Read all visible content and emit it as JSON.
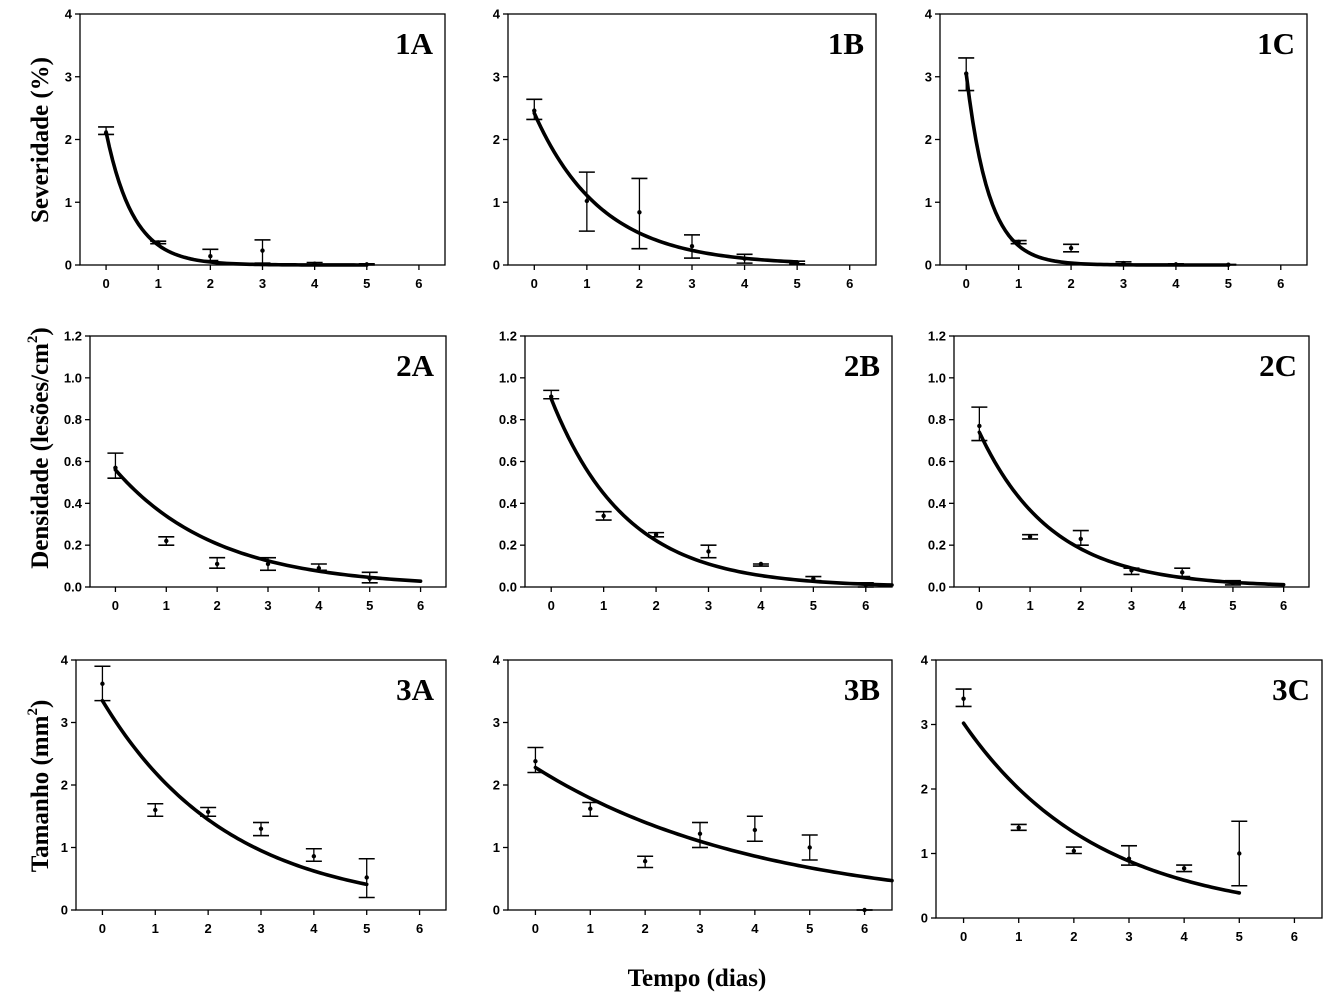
{
  "figure": {
    "x_label": "Tempo (dias)",
    "y_labels": [
      {
        "pre": "Severidade (%)",
        "sup": "",
        "post": ""
      },
      {
        "pre": "Densidade (lesões/cm",
        "sup": "2",
        "post": ")"
      },
      {
        "pre": "Tamanho (mm",
        "sup": "2",
        "post": ")"
      }
    ]
  },
  "chart_data": [
    {
      "id": "1A",
      "type": "line",
      "xlim": [
        -0.5,
        6.5
      ],
      "ylim": [
        0,
        4
      ],
      "xticks": [
        0,
        1,
        2,
        3,
        4,
        5,
        6
      ],
      "yticks": [
        0,
        1,
        2,
        3,
        4
      ],
      "points": [
        {
          "x": 0,
          "y": 2.1,
          "lo": 2.08,
          "hi": 2.2
        },
        {
          "x": 1,
          "y": 0.36,
          "lo": 0.34,
          "hi": 0.38
        },
        {
          "x": 2,
          "y": 0.14,
          "lo": 0.07,
          "hi": 0.25
        },
        {
          "x": 3,
          "y": 0.23,
          "lo": 0.03,
          "hi": 0.4
        },
        {
          "x": 4,
          "y": 0.02,
          "lo": 0.0,
          "hi": 0.04
        },
        {
          "x": 5,
          "y": 0.01,
          "lo": 0.0,
          "hi": 0.02
        }
      ],
      "curve": {
        "a": 2.12,
        "b": 1.9,
        "x0": 0,
        "x1": 5
      }
    },
    {
      "id": "1B",
      "type": "line",
      "xlim": [
        -0.5,
        6.5
      ],
      "ylim": [
        0,
        4
      ],
      "xticks": [
        0,
        1,
        2,
        3,
        4,
        5,
        6
      ],
      "yticks": [
        0,
        1,
        2,
        3,
        4
      ],
      "points": [
        {
          "x": 0,
          "y": 2.46,
          "lo": 2.32,
          "hi": 2.64
        },
        {
          "x": 1,
          "y": 1.02,
          "lo": 0.54,
          "hi": 1.48
        },
        {
          "x": 2,
          "y": 0.84,
          "lo": 0.26,
          "hi": 1.38
        },
        {
          "x": 3,
          "y": 0.3,
          "lo": 0.11,
          "hi": 0.48
        },
        {
          "x": 4,
          "y": 0.1,
          "lo": 0.03,
          "hi": 0.17
        },
        {
          "x": 5,
          "y": 0.04,
          "lo": 0.02,
          "hi": 0.06
        }
      ],
      "curve": {
        "a": 2.42,
        "b": 0.78,
        "x0": 0,
        "x1": 5
      }
    },
    {
      "id": "1C",
      "type": "line",
      "xlim": [
        -0.5,
        6.5
      ],
      "ylim": [
        0,
        4
      ],
      "xticks": [
        0,
        1,
        2,
        3,
        4,
        5,
        6
      ],
      "yticks": [
        0,
        1,
        2,
        3,
        4
      ],
      "points": [
        {
          "x": 0,
          "y": 3.05,
          "lo": 2.78,
          "hi": 3.3
        },
        {
          "x": 1,
          "y": 0.37,
          "lo": 0.34,
          "hi": 0.39
        },
        {
          "x": 2,
          "y": 0.27,
          "lo": 0.21,
          "hi": 0.33
        },
        {
          "x": 3,
          "y": 0.03,
          "lo": 0.01,
          "hi": 0.05
        },
        {
          "x": 4,
          "y": 0.01,
          "lo": 0.0,
          "hi": 0.02
        },
        {
          "x": 5,
          "y": 0.005,
          "lo": 0.0,
          "hi": 0.01
        }
      ],
      "curve": {
        "a": 3.05,
        "b": 2.3,
        "x0": 0,
        "x1": 5
      }
    },
    {
      "id": "2A",
      "type": "line",
      "xlim": [
        -0.5,
        6.5
      ],
      "ylim": [
        0,
        1.2
      ],
      "xticks": [
        0,
        1,
        2,
        3,
        4,
        5,
        6
      ],
      "yticks": [
        0.0,
        0.2,
        0.4,
        0.6,
        0.8,
        1.0,
        1.2
      ],
      "points": [
        {
          "x": 0,
          "y": 0.57,
          "lo": 0.52,
          "hi": 0.64
        },
        {
          "x": 1,
          "y": 0.22,
          "lo": 0.2,
          "hi": 0.24
        },
        {
          "x": 2,
          "y": 0.11,
          "lo": 0.09,
          "hi": 0.14
        },
        {
          "x": 3,
          "y": 0.11,
          "lo": 0.08,
          "hi": 0.14
        },
        {
          "x": 4,
          "y": 0.09,
          "lo": 0.08,
          "hi": 0.11
        },
        {
          "x": 5,
          "y": 0.04,
          "lo": 0.02,
          "hi": 0.07
        }
      ],
      "curve": {
        "a": 0.56,
        "b": 0.5,
        "x0": 0,
        "x1": 6
      }
    },
    {
      "id": "2B",
      "type": "line",
      "xlim": [
        -0.5,
        6.5
      ],
      "ylim": [
        0,
        1.2
      ],
      "xticks": [
        0,
        1,
        2,
        3,
        4,
        5,
        6
      ],
      "yticks": [
        0.0,
        0.2,
        0.4,
        0.6,
        0.8,
        1.0,
        1.2
      ],
      "points": [
        {
          "x": 0,
          "y": 0.91,
          "lo": 0.9,
          "hi": 0.94
        },
        {
          "x": 1,
          "y": 0.34,
          "lo": 0.32,
          "hi": 0.36
        },
        {
          "x": 2,
          "y": 0.25,
          "lo": 0.24,
          "hi": 0.26
        },
        {
          "x": 3,
          "y": 0.17,
          "lo": 0.14,
          "hi": 0.2
        },
        {
          "x": 4,
          "y": 0.11,
          "lo": 0.1,
          "hi": 0.11
        },
        {
          "x": 5,
          "y": 0.04,
          "lo": 0.03,
          "hi": 0.05
        },
        {
          "x": 6,
          "y": 0.01,
          "lo": 0.0,
          "hi": 0.02
        }
      ],
      "curve": {
        "a": 0.9,
        "b": 0.7,
        "x0": 0,
        "x1": 6.5
      }
    },
    {
      "id": "2C",
      "type": "line",
      "xlim": [
        -0.5,
        6.5
      ],
      "ylim": [
        0,
        1.2
      ],
      "xticks": [
        0,
        1,
        2,
        3,
        4,
        5,
        6
      ],
      "yticks": [
        0.0,
        0.2,
        0.4,
        0.6,
        0.8,
        1.0,
        1.2
      ],
      "points": [
        {
          "x": 0,
          "y": 0.77,
          "lo": 0.7,
          "hi": 0.86
        },
        {
          "x": 1,
          "y": 0.24,
          "lo": 0.23,
          "hi": 0.25
        },
        {
          "x": 2,
          "y": 0.23,
          "lo": 0.2,
          "hi": 0.27
        },
        {
          "x": 3,
          "y": 0.08,
          "lo": 0.06,
          "hi": 0.09
        },
        {
          "x": 4,
          "y": 0.07,
          "lo": 0.05,
          "hi": 0.09
        },
        {
          "x": 5,
          "y": 0.02,
          "lo": 0.01,
          "hi": 0.03
        }
      ],
      "curve": {
        "a": 0.74,
        "b": 0.7,
        "x0": 0,
        "x1": 6
      }
    },
    {
      "id": "3A",
      "type": "line",
      "xlim": [
        -0.5,
        6.5
      ],
      "ylim": [
        0,
        4
      ],
      "xticks": [
        0,
        1,
        2,
        3,
        4,
        5,
        6
      ],
      "yticks": [
        0,
        1,
        2,
        3,
        4
      ],
      "points": [
        {
          "x": 0,
          "y": 3.62,
          "lo": 3.35,
          "hi": 3.9
        },
        {
          "x": 1,
          "y": 1.6,
          "lo": 1.5,
          "hi": 1.7
        },
        {
          "x": 2,
          "y": 1.57,
          "lo": 1.5,
          "hi": 1.64
        },
        {
          "x": 3,
          "y": 1.3,
          "lo": 1.19,
          "hi": 1.4
        },
        {
          "x": 4,
          "y": 0.86,
          "lo": 0.78,
          "hi": 0.98
        },
        {
          "x": 5,
          "y": 0.52,
          "lo": 0.2,
          "hi": 0.82
        }
      ],
      "curve": {
        "a": 3.35,
        "b": 0.42,
        "x0": 0,
        "x1": 5
      }
    },
    {
      "id": "3B",
      "type": "line",
      "xlim": [
        -0.5,
        6.5
      ],
      "ylim": [
        0,
        4
      ],
      "xticks": [
        0,
        1,
        2,
        3,
        4,
        5,
        6
      ],
      "yticks": [
        0,
        1,
        2,
        3,
        4
      ],
      "points": [
        {
          "x": 0,
          "y": 2.38,
          "lo": 2.2,
          "hi": 2.6
        },
        {
          "x": 1,
          "y": 1.62,
          "lo": 1.5,
          "hi": 1.72
        },
        {
          "x": 2,
          "y": 0.78,
          "lo": 0.68,
          "hi": 0.86
        },
        {
          "x": 3,
          "y": 1.22,
          "lo": 1.0,
          "hi": 1.4
        },
        {
          "x": 4,
          "y": 1.28,
          "lo": 1.1,
          "hi": 1.5
        },
        {
          "x": 5,
          "y": 1.0,
          "lo": 0.8,
          "hi": 1.2
        },
        {
          "x": 6,
          "y": 0.0,
          "lo": 0.0,
          "hi": 0.0
        }
      ],
      "curve": {
        "a": 2.28,
        "b": 0.243,
        "x0": 0,
        "x1": 6.5
      }
    },
    {
      "id": "3C",
      "type": "line",
      "xlim": [
        -0.5,
        6.5
      ],
      "ylim": [
        0,
        4
      ],
      "xticks": [
        0,
        1,
        2,
        3,
        4,
        5,
        6
      ],
      "yticks": [
        0,
        1,
        2,
        3,
        4
      ],
      "points": [
        {
          "x": 0,
          "y": 3.4,
          "lo": 3.28,
          "hi": 3.55
        },
        {
          "x": 1,
          "y": 1.4,
          "lo": 1.36,
          "hi": 1.45
        },
        {
          "x": 2,
          "y": 1.04,
          "lo": 1.0,
          "hi": 1.1
        },
        {
          "x": 3,
          "y": 0.92,
          "lo": 0.82,
          "hi": 1.12
        },
        {
          "x": 4,
          "y": 0.77,
          "lo": 0.72,
          "hi": 0.82
        },
        {
          "x": 5,
          "y": 1.0,
          "lo": 0.5,
          "hi": 1.5
        }
      ],
      "curve": {
        "a": 3.02,
        "b": 0.41,
        "x0": 0,
        "x1": 5
      }
    }
  ]
}
